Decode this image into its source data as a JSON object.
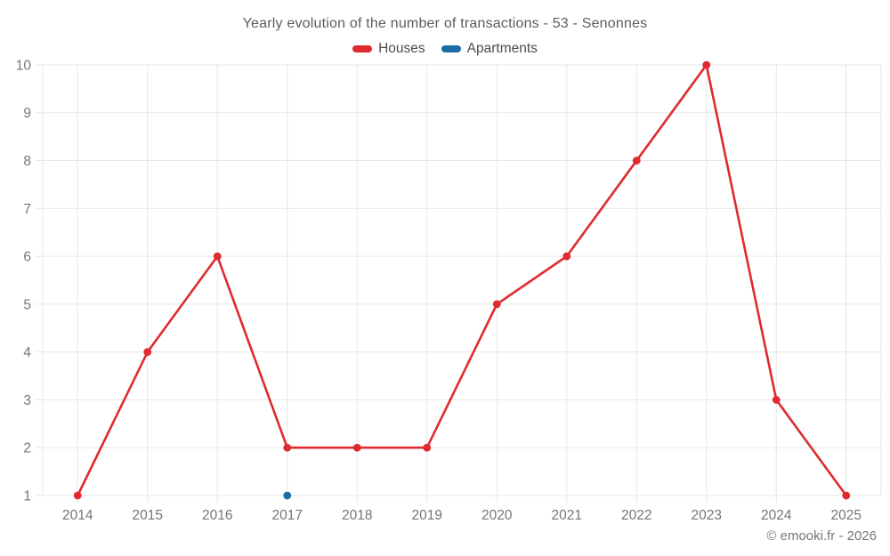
{
  "title": "Yearly evolution of the number of transactions - 53 - Senonnes",
  "footer": "© emooki.fr - 2026",
  "legend": {
    "items": [
      {
        "label": "Houses",
        "color": "#df2b2f"
      },
      {
        "label": "Apartments",
        "color": "#1b6ea5"
      }
    ]
  },
  "chart_data": {
    "type": "line",
    "title": "Yearly evolution of the number of transactions - 53 - Senonnes",
    "categories": [
      "2014",
      "2015",
      "2016",
      "2017",
      "2018",
      "2019",
      "2020",
      "2021",
      "2022",
      "2023",
      "2024",
      "2025"
    ],
    "series": [
      {
        "name": "Houses",
        "color": "#df2b2f",
        "values": [
          1,
          4,
          6,
          2,
          2,
          2,
          5,
          6,
          8,
          10,
          3,
          1
        ]
      },
      {
        "name": "Apartments",
        "color": "#1b6ea5",
        "values": [
          null,
          null,
          null,
          1,
          null,
          null,
          null,
          null,
          null,
          null,
          null,
          null
        ]
      }
    ],
    "xlabel": "",
    "ylabel": "",
    "ylim": [
      1,
      10
    ],
    "yticks": [
      1,
      2,
      3,
      4,
      5,
      6,
      7,
      8,
      9,
      10
    ],
    "grid": true,
    "legend_position": "top",
    "grid_color": "#e7e7e7",
    "tick_label_color": "#757575"
  }
}
